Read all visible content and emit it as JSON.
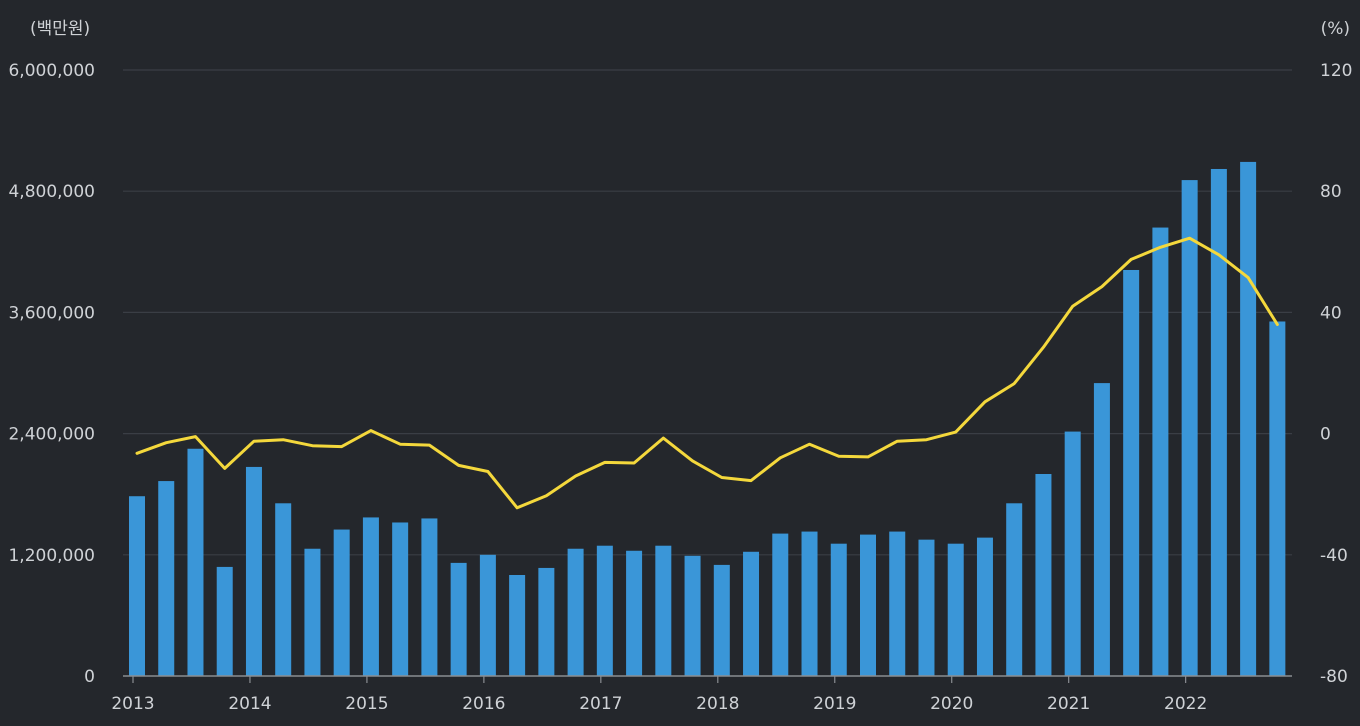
{
  "chart_data": {
    "type": "bar",
    "left_unit": "(백만원)",
    "right_unit": "(%)",
    "left_ticks": [
      "0",
      "1,200,000",
      "2,400,000",
      "3,600,000",
      "4,800,000",
      "6,000,000"
    ],
    "right_ticks": [
      "-80",
      "-40",
      "0",
      "40",
      "80",
      "120"
    ],
    "x_tick_labels": [
      "2013",
      "2014",
      "2015",
      "2016",
      "2017",
      "2018",
      "2019",
      "2020",
      "2021",
      "2022"
    ],
    "ylim_left": [
      0,
      6000000
    ],
    "ylim_right": [
      -80,
      120
    ],
    "grid": true,
    "colors": {
      "bar": "#3a96d8",
      "line": "#f4d83c",
      "background": "#24272c",
      "grid": "#3a3e45",
      "axis": "#8a8d92"
    },
    "series": [
      {
        "type": "bar",
        "axis": "left",
        "values": [
          1780000,
          1930000,
          2250000,
          1080000,
          2070000,
          1710000,
          1260000,
          1450000,
          1570000,
          1520000,
          1560000,
          1120000,
          1200000,
          1000000,
          1070000,
          1260000,
          1290000,
          1240000,
          1290000,
          1190000,
          1100000,
          1230000,
          1410000,
          1430000,
          1310000,
          1400000,
          1430000,
          1350000,
          1310000,
          1370000,
          1710000,
          2000000,
          2420000,
          2900000,
          4020000,
          4440000,
          4910000,
          5020000,
          5090000,
          3510000
        ]
      },
      {
        "type": "line",
        "axis": "right",
        "values": [
          -6.5,
          -3,
          -1,
          -11.5,
          -2.5,
          -2,
          -4,
          -4.3,
          1,
          -3.5,
          -3.8,
          -10.5,
          -12.5,
          -24.5,
          -20.5,
          -14,
          -9.5,
          -9.7,
          -1.5,
          -9,
          -14.5,
          -15.5,
          -8,
          -3.5,
          -7.5,
          -7.7,
          -2.5,
          -2,
          0.5,
          10.5,
          16.5,
          28.5,
          42,
          48.5,
          57.5,
          61.5,
          64.5,
          59,
          51.5,
          36
        ]
      }
    ]
  }
}
